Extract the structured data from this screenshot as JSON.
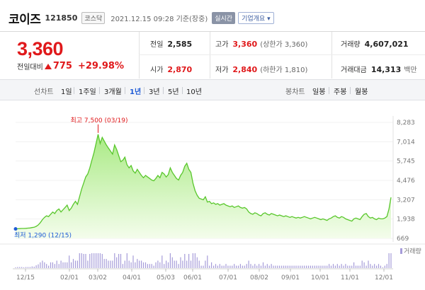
{
  "header": {
    "name": "코이즈",
    "code": "121850",
    "market": "코스닥",
    "date": "2021.12.15 09:28 기준(장중)",
    "realtime_label": "실시간",
    "company_label": "기업개요 ▾"
  },
  "price": {
    "current": "3,360",
    "change_label": "전일대비",
    "change_amount": "775",
    "change_percent": "+29.98%"
  },
  "stats": {
    "prev_close": {
      "label": "전일",
      "value": "2,585"
    },
    "open": {
      "label": "시가",
      "value": "2,870"
    },
    "high": {
      "label": "고가",
      "value": "3,360",
      "sub": "(상한가 3,360)"
    },
    "low": {
      "label": "저가",
      "value": "2,840",
      "sub": "(하한가 1,810)"
    },
    "volume": {
      "label": "거래량",
      "value": "4,607,021"
    },
    "amount": {
      "label": "거래대금",
      "value": "14,313",
      "unit": "백만"
    }
  },
  "period": {
    "line_label": "선차트",
    "line_tabs": [
      "1일",
      "1주일",
      "3개월",
      "1년",
      "3년",
      "5년",
      "10년"
    ],
    "active_tab": "1년",
    "candle_label": "봉차트",
    "candle_tabs": [
      "일봉",
      "주봉",
      "월봉"
    ]
  },
  "chart_data": {
    "type": "area",
    "x_ticks": [
      "12/15",
      "02/01",
      "03/02",
      "04/01",
      "05/03",
      "06/01",
      "07/01",
      "08/02",
      "09/01",
      "10/01",
      "11/01",
      "12/01"
    ],
    "y_ticks": [
      "8,283",
      "7,014",
      "5,745",
      "4,476",
      "3,207",
      "1,938",
      "669"
    ],
    "ylim": [
      669,
      8283
    ],
    "volume_label": "거래량",
    "annotations": {
      "high": {
        "label": "최고",
        "value": "7,500",
        "date": "(03/19)"
      },
      "low": {
        "label": "최저",
        "value": "1,290",
        "date": "(12/15)"
      }
    },
    "series": [
      {
        "values": [
          1290,
          1300,
          1310,
          1320,
          1320,
          1330,
          1340,
          1350,
          1380,
          1400,
          1460,
          1550,
          1700,
          1900,
          2050,
          2150,
          2100,
          2250,
          2400,
          2300,
          2500,
          2600,
          2400,
          2550,
          2700,
          2850,
          2500,
          2650,
          2900,
          3100,
          2900,
          3400,
          3900,
          4300,
          4700,
          4900,
          5300,
          5800,
          6300,
          6900,
          7500,
          6900,
          7300,
          7050,
          6800,
          6600,
          6400,
          6200,
          6800,
          6500,
          6100,
          5700,
          5800,
          6000,
          5500,
          5300,
          5450,
          5100,
          4950,
          5200,
          5000,
          4800,
          4650,
          4800,
          4700,
          4600,
          4500,
          4450,
          4600,
          4800,
          4650,
          5000,
          4900,
          4700,
          4850,
          5300,
          5000,
          4800,
          4600,
          4500,
          4800,
          5000,
          5400,
          5600,
          5200,
          5000,
          4300,
          3800,
          3500,
          3300,
          3250,
          3200,
          3400,
          3050,
          3100,
          2950,
          3000,
          2900,
          2950,
          2850,
          2900,
          2950,
          2850,
          2800,
          2750,
          2800,
          2700,
          2750,
          2800,
          2700,
          2650,
          2700,
          2600,
          2400,
          2300,
          2250,
          2350,
          2300,
          2200,
          2150,
          2300,
          2350,
          2250,
          2200,
          2300,
          2250,
          2200,
          2150,
          2200,
          2150,
          2100,
          2150,
          2100,
          2050,
          2100,
          2050,
          2000,
          2050,
          2000,
          2050,
          2100,
          2050,
          2000,
          1950,
          2000,
          2050,
          2000,
          1950,
          1900,
          1950,
          1900,
          1850,
          1950,
          2000,
          2100,
          2150,
          2050,
          2000,
          2100,
          2050,
          1950,
          1900,
          1850,
          1800,
          1950,
          2000,
          1950,
          1900,
          2100,
          2250,
          2300,
          2100,
          2000,
          2050,
          1950,
          1900,
          2000,
          1950,
          1950,
          2000,
          2100,
          2585,
          3360
        ]
      }
    ]
  },
  "colors": {
    "accent_red": "#e0191b",
    "accent_blue": "#1e5bd6",
    "area_line": "#59c72c",
    "volume_bar": "#a69cd9"
  }
}
